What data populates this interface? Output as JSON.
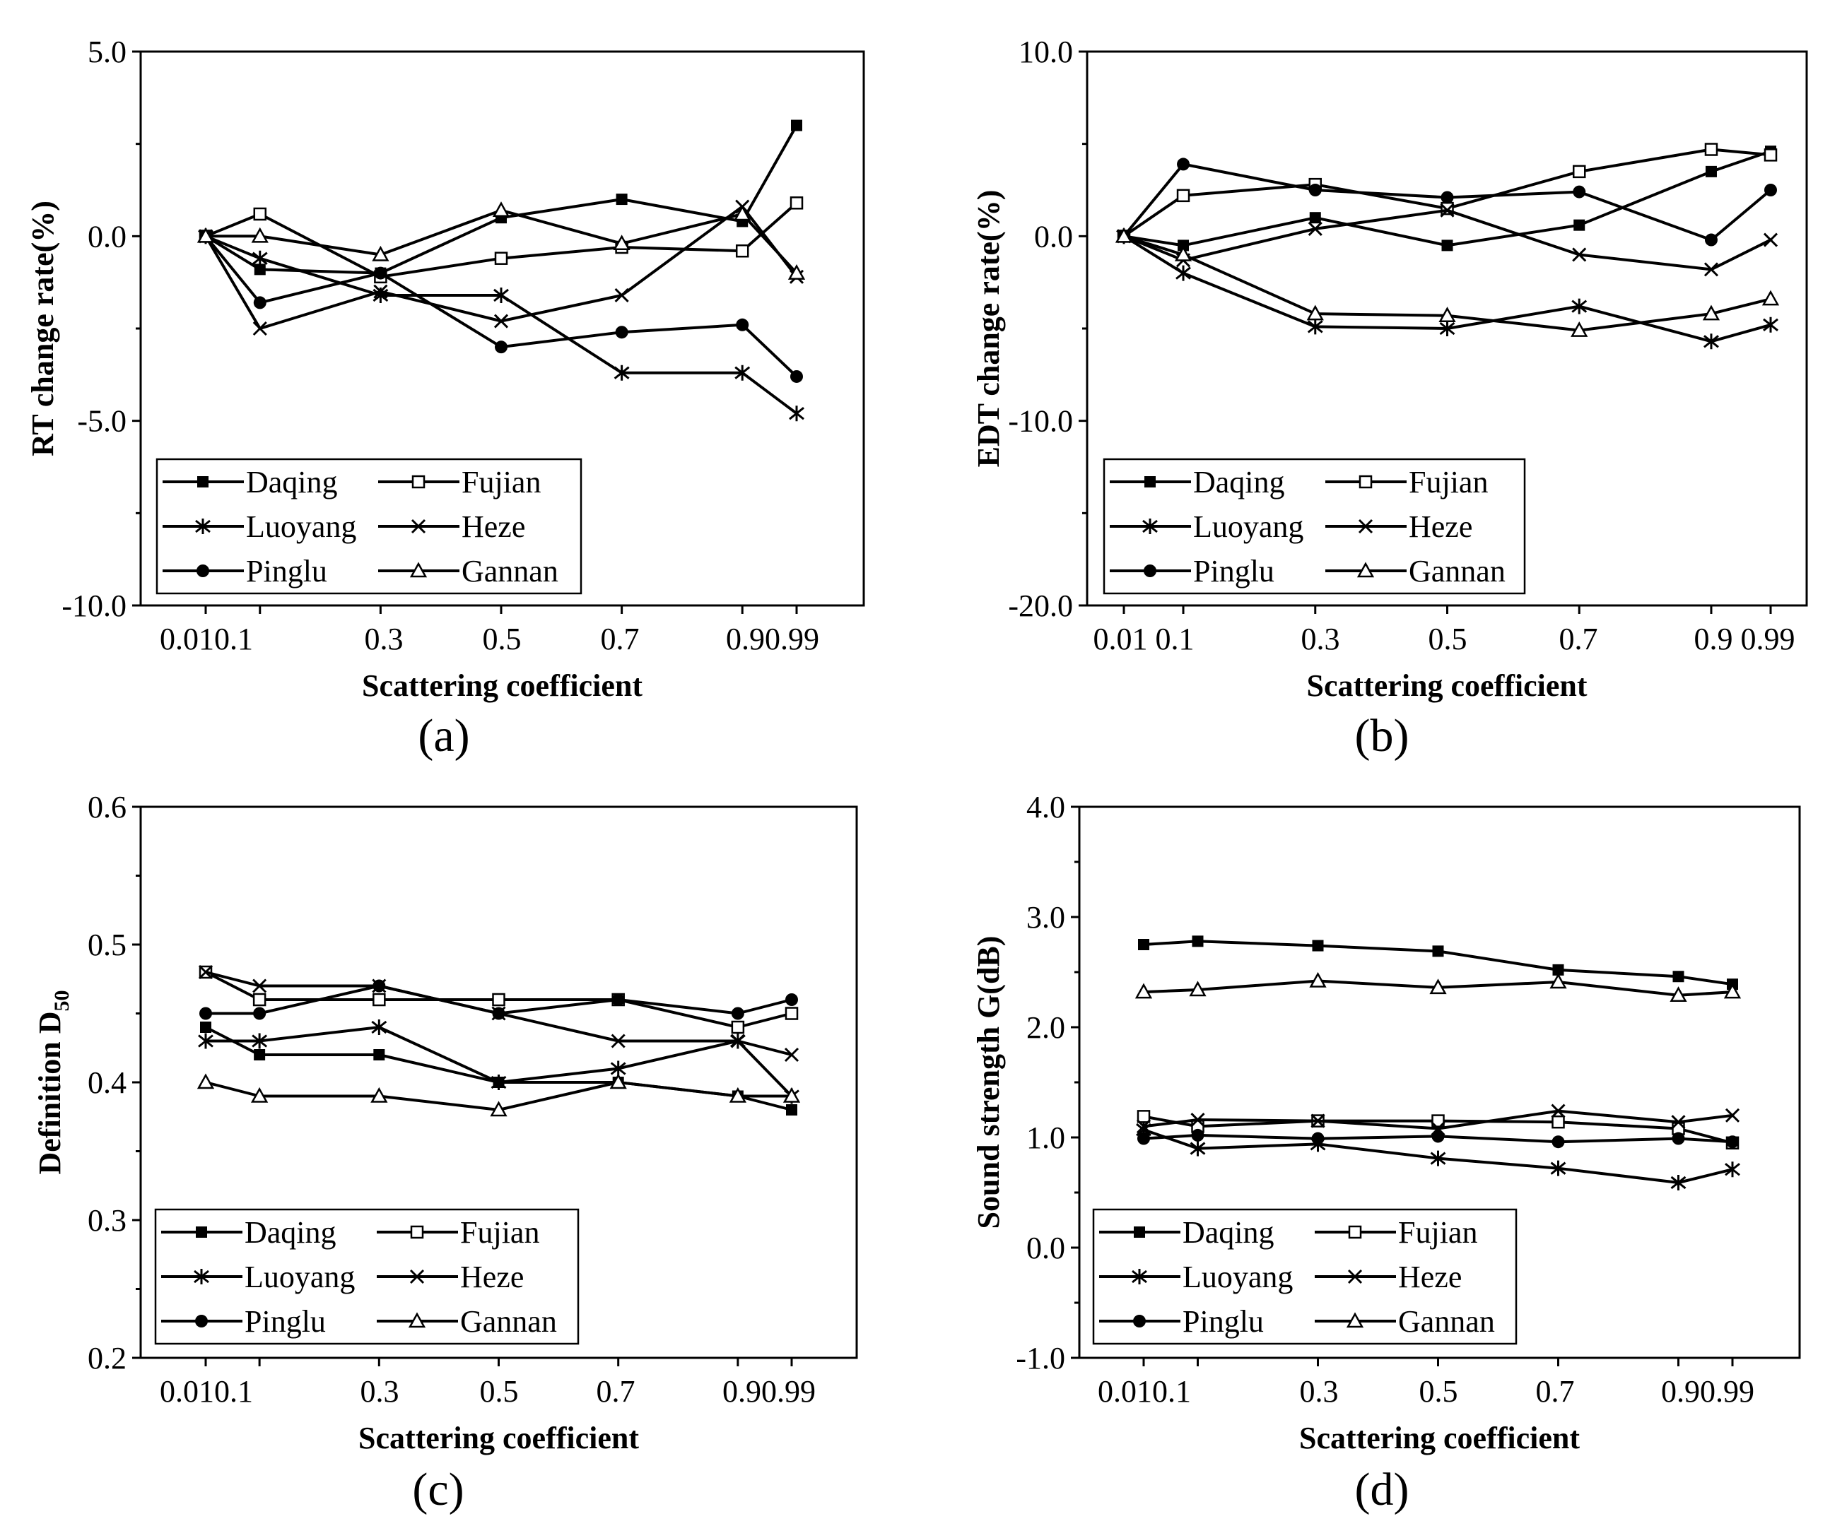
{
  "chart_data": [
    {
      "type": "line",
      "panel_label": "(a)",
      "xlabel": "Scattering coefficient",
      "ylabel": "RT change rate(%)",
      "x": [
        0.01,
        0.1,
        0.3,
        0.5,
        0.7,
        0.9,
        0.99
      ],
      "xtick_labels": [
        "0.010.1",
        "0.3",
        "0.5",
        "0.7",
        "0.90.99"
      ],
      "ylim": [
        -10,
        5
      ],
      "yticks": [
        5,
        0,
        -5,
        -10
      ],
      "ytick_labels": [
        "5.0",
        "0.0",
        "-5.0",
        "-10.0"
      ],
      "legend_position": "bottom-left",
      "series": [
        {
          "name": "Daqing",
          "marker": "square-filled",
          "values": [
            0,
            -0.9,
            -1.0,
            0.5,
            1.0,
            0.4,
            3.0
          ]
        },
        {
          "name": "Fujian",
          "marker": "square-open",
          "values": [
            0,
            0.6,
            -1.1,
            -0.6,
            -0.3,
            -0.4,
            0.9
          ]
        },
        {
          "name": "Luoyang",
          "marker": "asterisk",
          "values": [
            0,
            -0.6,
            -1.6,
            -1.6,
            -3.7,
            -3.7,
            -4.8
          ]
        },
        {
          "name": "Heze",
          "marker": "cross",
          "values": [
            0,
            -2.5,
            -1.5,
            -2.3,
            -1.6,
            0.8,
            -1.1
          ]
        },
        {
          "name": "Pinglu",
          "marker": "circle-filled",
          "values": [
            0,
            -1.8,
            -1.0,
            -3.0,
            -2.6,
            -2.4,
            -3.8
          ]
        },
        {
          "name": "Gannan",
          "marker": "triangle-open",
          "values": [
            0,
            0,
            -0.5,
            0.7,
            -0.2,
            0.6,
            -1.0
          ]
        }
      ]
    },
    {
      "type": "line",
      "panel_label": "(b)",
      "xlabel": "Scattering coefficient",
      "ylabel": "EDT change rate(%)",
      "x": [
        0.01,
        0.1,
        0.3,
        0.5,
        0.7,
        0.9,
        0.99
      ],
      "xtick_labels": [
        "0.01 0.1",
        "0.3",
        "0.5",
        "0.7",
        "0.9 0.99"
      ],
      "ylim": [
        -20,
        10
      ],
      "yticks": [
        10,
        0,
        -10,
        -20
      ],
      "ytick_labels": [
        "10.0",
        "0.0",
        "-10.0",
        "-20.0"
      ],
      "legend_position": "bottom-left",
      "series": [
        {
          "name": "Daqing",
          "marker": "square-filled",
          "values": [
            0,
            -0.5,
            1.0,
            -0.5,
            0.6,
            3.5,
            4.6
          ]
        },
        {
          "name": "Fujian",
          "marker": "square-open",
          "values": [
            0,
            2.2,
            2.8,
            1.5,
            3.5,
            4.7,
            4.4
          ]
        },
        {
          "name": "Luoyang",
          "marker": "asterisk",
          "values": [
            0,
            -2.0,
            -4.9,
            -5.0,
            -3.8,
            -5.7,
            -4.8
          ]
        },
        {
          "name": "Heze",
          "marker": "cross",
          "values": [
            0,
            -1.3,
            0.4,
            1.4,
            -1.0,
            -1.8,
            -0.2
          ]
        },
        {
          "name": "Pinglu",
          "marker": "circle-filled",
          "values": [
            0,
            3.9,
            2.5,
            2.1,
            2.4,
            -0.2,
            2.5
          ]
        },
        {
          "name": "Gannan",
          "marker": "triangle-open",
          "values": [
            0,
            -1.0,
            -4.2,
            -4.3,
            -5.1,
            -4.2,
            -3.4
          ]
        }
      ]
    },
    {
      "type": "line",
      "panel_label": "(c)",
      "xlabel": "Scattering coefficient",
      "ylabel": "Definition D",
      "ylabel_subscript": "50",
      "x": [
        0.01,
        0.1,
        0.3,
        0.5,
        0.7,
        0.9,
        0.99
      ],
      "xtick_labels": [
        "0.010.1",
        "0.3",
        "0.5",
        "0.7",
        "0.90.99"
      ],
      "ylim": [
        0.2,
        0.6
      ],
      "yticks": [
        0.6,
        0.5,
        0.4,
        0.3,
        0.2
      ],
      "ytick_labels": [
        "0.6",
        "0.5",
        "0.4",
        "0.3",
        "0.2"
      ],
      "legend_position": "bottom-left",
      "series": [
        {
          "name": "Daqing",
          "marker": "square-filled",
          "values": [
            0.44,
            0.42,
            0.42,
            0.4,
            0.4,
            0.39,
            0.38
          ]
        },
        {
          "name": "Fujian",
          "marker": "square-open",
          "values": [
            0.48,
            0.46,
            0.46,
            0.46,
            0.46,
            0.44,
            0.45
          ]
        },
        {
          "name": "Luoyang",
          "marker": "asterisk",
          "values": [
            0.43,
            0.43,
            0.44,
            0.4,
            0.41,
            0.43,
            0.39
          ]
        },
        {
          "name": "Heze",
          "marker": "cross",
          "values": [
            0.48,
            0.47,
            0.47,
            0.45,
            0.43,
            0.43,
            0.42
          ]
        },
        {
          "name": "Pinglu",
          "marker": "circle-filled",
          "values": [
            0.45,
            0.45,
            0.47,
            0.45,
            0.46,
            0.45,
            0.46
          ]
        },
        {
          "name": "Gannan",
          "marker": "triangle-open",
          "values": [
            0.4,
            0.39,
            0.39,
            0.38,
            0.4,
            0.39,
            0.39
          ]
        }
      ]
    },
    {
      "type": "line",
      "panel_label": "(d)",
      "xlabel": "Scattering coefficient",
      "ylabel": "Sound strength G(dB)",
      "x": [
        0.01,
        0.1,
        0.3,
        0.5,
        0.7,
        0.9,
        0.99
      ],
      "xtick_labels": [
        "0.010.1",
        "0.3",
        "0.5",
        "0.7",
        "0.90.99"
      ],
      "ylim": [
        -1,
        4
      ],
      "yticks": [
        4,
        3,
        2,
        1,
        0,
        -1
      ],
      "ytick_labels": [
        "4.0",
        "3.0",
        "2.0",
        "1.0",
        "0.0",
        "-1.0"
      ],
      "legend_position": "bottom-left",
      "series": [
        {
          "name": "Daqing",
          "marker": "square-filled",
          "values": [
            2.75,
            2.78,
            2.74,
            2.69,
            2.52,
            2.46,
            2.39
          ]
        },
        {
          "name": "Fujian",
          "marker": "square-open",
          "values": [
            1.19,
            1.1,
            1.15,
            1.15,
            1.14,
            1.08,
            0.95
          ]
        },
        {
          "name": "Luoyang",
          "marker": "asterisk",
          "values": [
            1.07,
            0.9,
            0.94,
            0.81,
            0.72,
            0.59,
            0.71
          ]
        },
        {
          "name": "Heze",
          "marker": "cross",
          "values": [
            1.1,
            1.16,
            1.15,
            1.08,
            1.24,
            1.14,
            1.2
          ]
        },
        {
          "name": "Pinglu",
          "marker": "circle-filled",
          "values": [
            0.99,
            1.02,
            0.99,
            1.01,
            0.96,
            0.99,
            0.96
          ]
        },
        {
          "name": "Gannan",
          "marker": "triangle-open",
          "values": [
            2.32,
            2.34,
            2.42,
            2.36,
            2.41,
            2.29,
            2.32
          ]
        }
      ]
    }
  ]
}
